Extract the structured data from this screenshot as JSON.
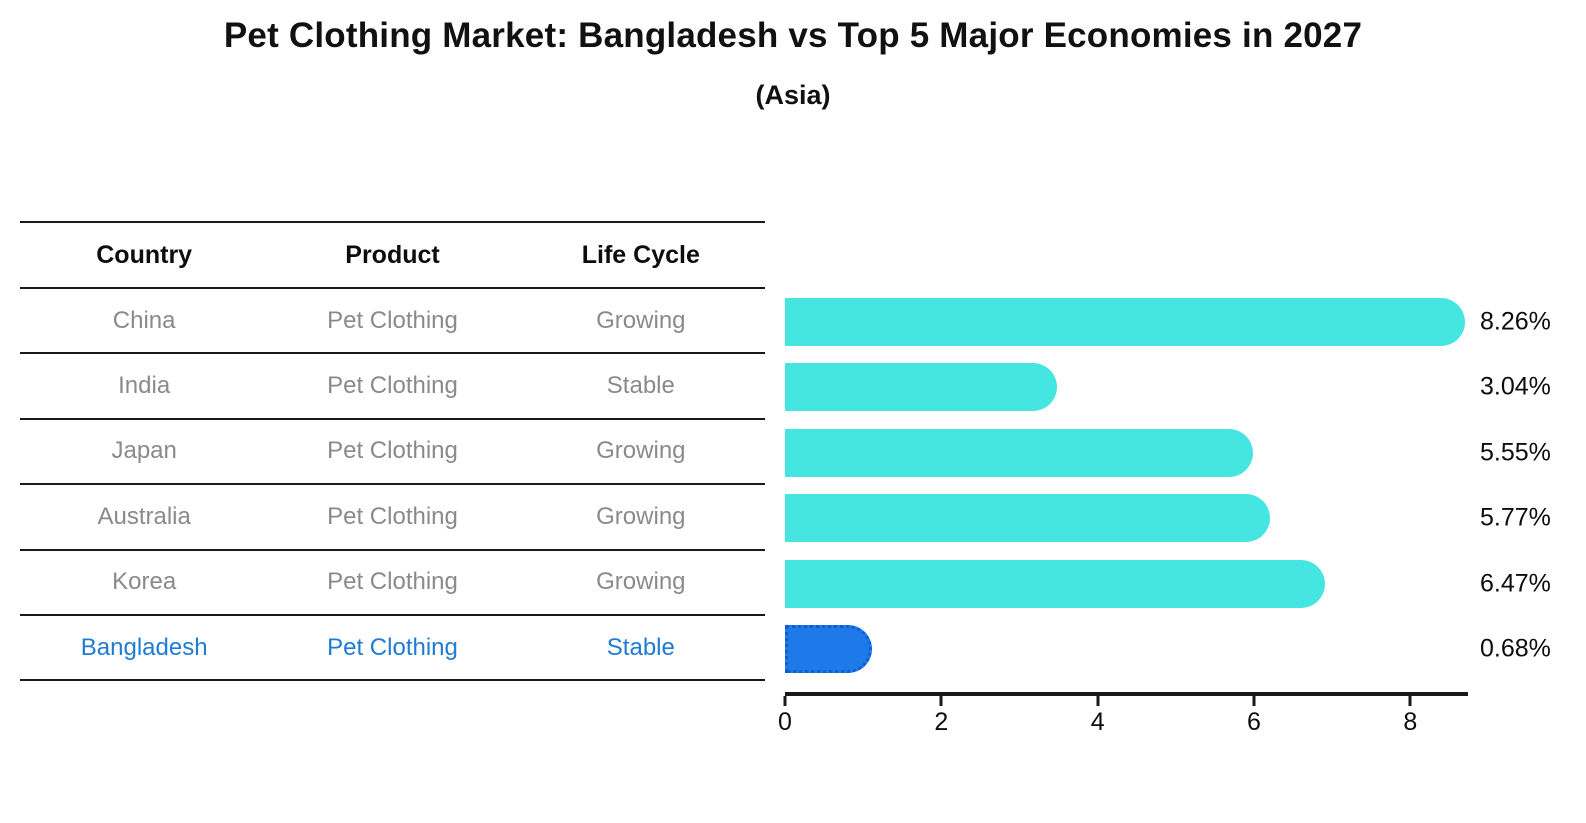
{
  "title": "Pet Clothing Market: Bangladesh vs Top 5 Major Economies in 2027",
  "subtitle": "(Asia)",
  "table": {
    "headers": [
      "Country",
      "Product",
      "Life Cycle"
    ],
    "rows": [
      {
        "country": "China",
        "product": "Pet Clothing",
        "life_cycle": "Growing",
        "highlight": false
      },
      {
        "country": "India",
        "product": "Pet Clothing",
        "life_cycle": "Stable",
        "highlight": false
      },
      {
        "country": "Japan",
        "product": "Pet Clothing",
        "life_cycle": "Growing",
        "highlight": false
      },
      {
        "country": "Australia",
        "product": "Pet Clothing",
        "life_cycle": "Growing",
        "highlight": false
      },
      {
        "country": "Korea",
        "product": "Pet Clothing",
        "life_cycle": "Growing",
        "highlight": false
      },
      {
        "country": "Bangladesh",
        "product": "Pet Clothing",
        "life_cycle": "Stable",
        "highlight": true
      }
    ]
  },
  "chart_data": {
    "type": "bar",
    "orientation": "horizontal",
    "title": "Pet Clothing Market: Bangladesh vs Top 5 Major Economies in 2027",
    "subtitle": "(Asia)",
    "categories": [
      "China",
      "India",
      "Japan",
      "Australia",
      "Korea",
      "Bangladesh"
    ],
    "values": [
      8.26,
      3.04,
      5.55,
      5.77,
      6.47,
      0.68
    ],
    "value_labels": [
      "8.26%",
      "3.04%",
      "5.55%",
      "5.77%",
      "6.47%",
      "0.68%"
    ],
    "x_ticks": [
      0,
      2,
      4,
      6,
      8
    ],
    "xlim": [
      0,
      8.7
    ],
    "grid": false,
    "legend": false,
    "highlight_index": 5
  },
  "colors": {
    "bar_color": "#45E6E2",
    "highlight_bar_color": "#1E7AE8",
    "highlight_bar_border": "#0E5FD6",
    "highlight_text": "#1F7BD4",
    "row_text": "#8A8A8A",
    "header_text": "#0D0D0D",
    "axis": "#1A1A1A"
  }
}
